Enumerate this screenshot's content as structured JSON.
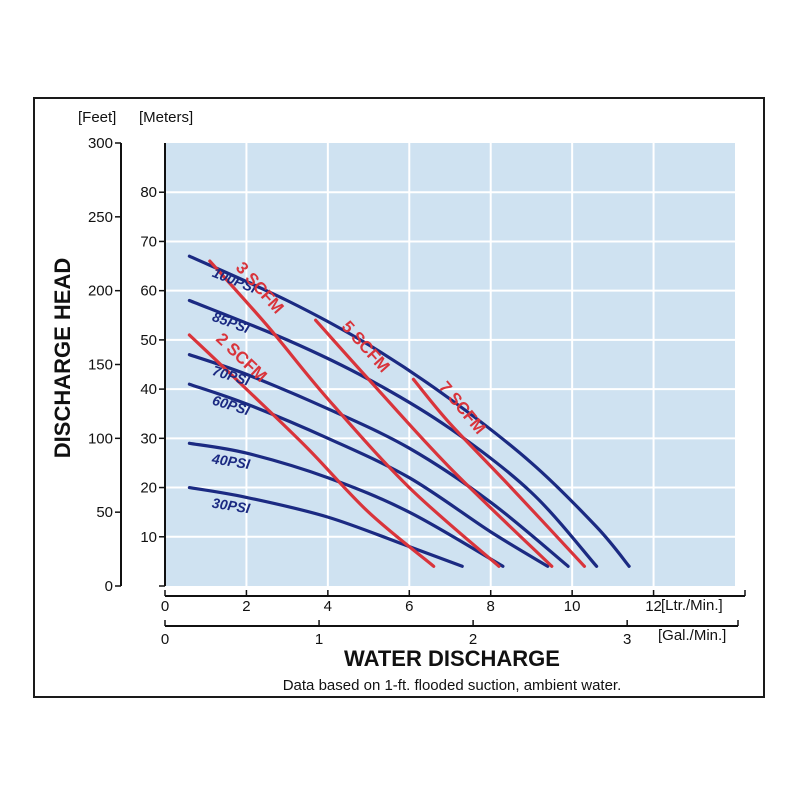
{
  "chart_data": {
    "type": "line",
    "ylabel": "DISCHARGE HEAD",
    "xlabel": "WATER DISCHARGE",
    "note": "Data based on 1-ft. flooded suction, ambient water.",
    "axes": {
      "feet": {
        "unit": "[Feet]",
        "range": [
          0,
          300
        ],
        "ticks": [
          0,
          50,
          100,
          150,
          200,
          250,
          300
        ]
      },
      "meters": {
        "unit": "[Meters]",
        "range": [
          0,
          90
        ],
        "ticks": [
          0,
          10,
          20,
          30,
          40,
          50,
          60,
          70,
          80
        ]
      },
      "lpm": {
        "unit": "[Ltr./Min.]",
        "range": [
          0,
          14
        ],
        "ticks": [
          0,
          2,
          4,
          6,
          8,
          10,
          12
        ]
      },
      "gpm": {
        "unit": "[Gal./Min.]",
        "range": [
          0,
          3.7
        ],
        "ticks": [
          0,
          1,
          2,
          3
        ]
      }
    },
    "grid": true,
    "series": [
      {
        "name": "100PSI",
        "kind": "pressure",
        "x": [
          0.6,
          3,
          5,
          7,
          9,
          10.6,
          11.4
        ],
        "y": [
          67,
          58,
          49,
          38,
          25,
          12,
          4
        ]
      },
      {
        "name": "85PSI",
        "kind": "pressure",
        "x": [
          0.6,
          3,
          5,
          7,
          9,
          10.6
        ],
        "y": [
          58,
          50,
          42,
          32,
          19,
          4
        ]
      },
      {
        "name": "70PSI",
        "kind": "pressure",
        "x": [
          0.6,
          2,
          4,
          6,
          8,
          9.9
        ],
        "y": [
          47,
          43,
          36,
          28,
          17,
          4
        ]
      },
      {
        "name": "60PSI",
        "kind": "pressure",
        "x": [
          0.6,
          2,
          4,
          6,
          8,
          9.4
        ],
        "y": [
          41,
          37,
          30,
          22,
          11,
          4
        ]
      },
      {
        "name": "40PSI",
        "kind": "pressure",
        "x": [
          0.6,
          2,
          4,
          6,
          8.3
        ],
        "y": [
          29,
          27,
          22,
          15,
          4
        ]
      },
      {
        "name": "30PSI",
        "kind": "pressure",
        "x": [
          0.6,
          2,
          4,
          6,
          7.3
        ],
        "y": [
          20,
          18,
          14,
          8,
          4
        ]
      },
      {
        "name": "2 SCFM",
        "kind": "air",
        "x": [
          0.6,
          2,
          3.5,
          5,
          6.6
        ],
        "y": [
          51,
          40,
          28,
          15,
          4
        ]
      },
      {
        "name": "3 SCFM",
        "kind": "air",
        "x": [
          1.1,
          2.5,
          4,
          6,
          8.2
        ],
        "y": [
          66,
          53,
          38,
          20,
          4
        ]
      },
      {
        "name": "5 SCFM",
        "kind": "air",
        "x": [
          3.7,
          5,
          7,
          9.5
        ],
        "y": [
          54,
          42,
          24,
          4
        ]
      },
      {
        "name": "7 SCFM",
        "kind": "air",
        "x": [
          6.1,
          7,
          8.5,
          10.3
        ],
        "y": [
          42,
          33,
          20,
          4
        ]
      }
    ]
  }
}
